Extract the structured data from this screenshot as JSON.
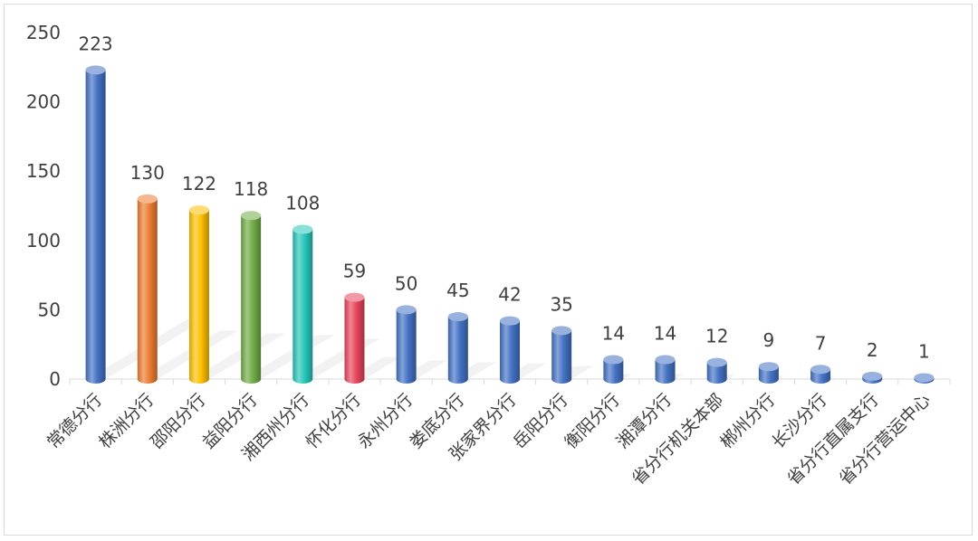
{
  "chart_data": {
    "type": "bar",
    "style": "3d-cylinder",
    "title": "",
    "xlabel": "",
    "ylabel": "",
    "ylim": [
      0,
      250
    ],
    "yticks": [
      0,
      50,
      100,
      150,
      200,
      250
    ],
    "grid": false,
    "legend": "none",
    "categories": [
      "常德分行",
      "株洲分行",
      "邵阳分行",
      "益阳分行",
      "湘西州分行",
      "怀化分行",
      "永州分行",
      "娄底分行",
      "张家界分行",
      "岳阳分行",
      "衡阳分行",
      "湘潭分行",
      "省分行机关本部",
      "郴州分行",
      "长沙分行",
      "省分行直属支行",
      "省分行营运中心"
    ],
    "values": [
      223,
      130,
      122,
      118,
      108,
      59,
      50,
      45,
      42,
      35,
      14,
      14,
      12,
      9,
      7,
      2,
      1
    ],
    "colors": [
      "#4472C4",
      "#ED7D31",
      "#FFC000",
      "#70AD47",
      "#26C6B9",
      "#E8455C",
      "#4472C4",
      "#4472C4",
      "#4472C4",
      "#4472C4",
      "#4472C4",
      "#4472C4",
      "#4472C4",
      "#4472C4",
      "#4472C4",
      "#4472C4",
      "#4472C4"
    ]
  }
}
